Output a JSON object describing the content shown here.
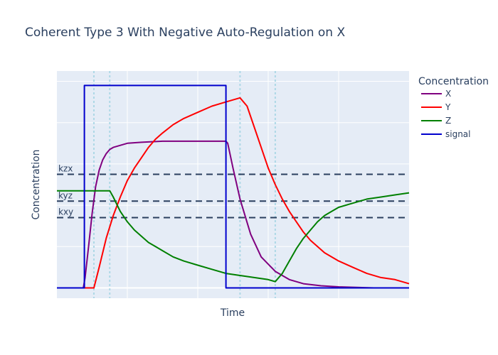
{
  "chart_data": {
    "type": "line",
    "title": "Coherent Type 3 With Negative Auto-Regulation on X",
    "xlabel": "Time",
    "ylabel": "Concentration",
    "xlim": [
      0,
      100
    ],
    "ylim": [
      -0.05,
      1.05
    ],
    "x_tick_labels_visible": false,
    "y_tick_labels_visible": false,
    "grid": true,
    "legend": {
      "title": "Concentration",
      "position": "right"
    },
    "colors": {
      "X": "#800080",
      "Y": "#ff0000",
      "Z": "#008000",
      "signal": "#0000cd",
      "threshold": "#2a3f5f",
      "event_line": "#add8e6"
    },
    "series": [
      {
        "name": "X",
        "x": [
          0,
          7.5,
          8,
          9,
          10,
          11,
          12,
          13,
          14,
          15,
          16,
          18,
          20,
          24,
          30,
          40,
          48,
          48.5,
          50,
          52,
          55,
          58,
          62,
          66,
          70,
          75,
          80,
          90,
          100
        ],
        "y": [
          0,
          0,
          0.05,
          0.2,
          0.36,
          0.49,
          0.57,
          0.62,
          0.65,
          0.67,
          0.68,
          0.69,
          0.7,
          0.705,
          0.71,
          0.71,
          0.71,
          0.7,
          0.58,
          0.43,
          0.26,
          0.15,
          0.08,
          0.04,
          0.02,
          0.01,
          0.005,
          0,
          0
        ]
      },
      {
        "name": "Y",
        "x": [
          0,
          10.5,
          12,
          14,
          16,
          18,
          20,
          22,
          24,
          26,
          28,
          30,
          33,
          36,
          40,
          44,
          48,
          52,
          54,
          56,
          58,
          60,
          62,
          64,
          66,
          68,
          70,
          72,
          74,
          76,
          80,
          84,
          88,
          92,
          96,
          100
        ],
        "y": [
          0,
          0,
          0.1,
          0.24,
          0.35,
          0.44,
          0.52,
          0.58,
          0.63,
          0.68,
          0.72,
          0.75,
          0.79,
          0.82,
          0.85,
          0.88,
          0.9,
          0.92,
          0.88,
          0.78,
          0.68,
          0.58,
          0.5,
          0.43,
          0.37,
          0.32,
          0.27,
          0.23,
          0.2,
          0.17,
          0.13,
          0.1,
          0.07,
          0.05,
          0.04,
          0.02
        ]
      },
      {
        "name": "Z",
        "x": [
          0,
          15,
          16,
          18,
          20,
          22,
          24,
          26,
          28,
          30,
          33,
          36,
          40,
          44,
          48,
          52,
          56,
          60,
          62,
          64,
          66,
          68,
          70,
          72,
          74,
          76,
          78,
          80,
          84,
          88,
          92,
          96,
          100
        ],
        "y": [
          0.47,
          0.47,
          0.44,
          0.37,
          0.32,
          0.28,
          0.25,
          0.22,
          0.2,
          0.18,
          0.15,
          0.13,
          0.11,
          0.09,
          0.07,
          0.06,
          0.05,
          0.04,
          0.03,
          0.07,
          0.13,
          0.19,
          0.24,
          0.28,
          0.32,
          0.35,
          0.37,
          0.39,
          0.41,
          0.43,
          0.44,
          0.45,
          0.46
        ]
      },
      {
        "name": "signal",
        "x": [
          0,
          7.8,
          7.8,
          48,
          48,
          100
        ],
        "y": [
          0,
          0,
          0.98,
          0.98,
          0,
          0
        ]
      }
    ],
    "thresholds": [
      {
        "label": "kzx",
        "y": 0.55
      },
      {
        "label": "kyz",
        "y": 0.42
      },
      {
        "label": "kxy",
        "y": 0.34
      }
    ],
    "event_lines_x": [
      10.5,
      15,
      52,
      62
    ]
  }
}
